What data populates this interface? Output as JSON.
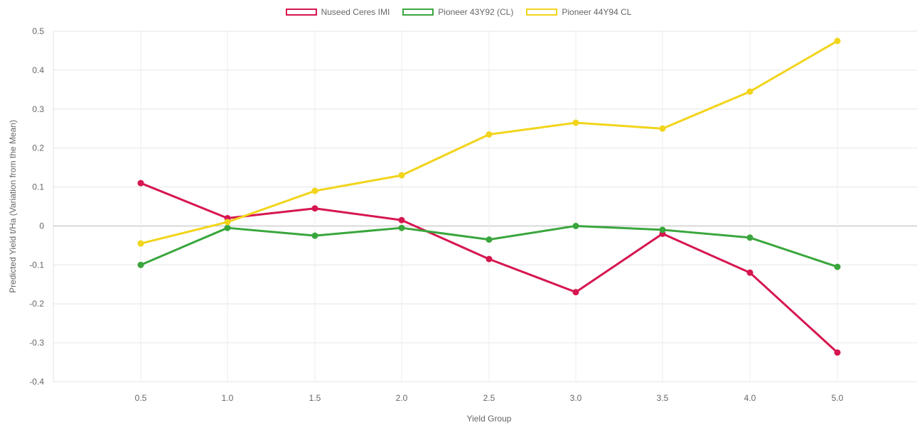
{
  "chart_data": {
    "type": "line",
    "title": "",
    "xlabel": "Yield Group",
    "ylabel": "Predicted Yield t/Ha (Variation from the Mean)",
    "x": [
      0.5,
      1.0,
      1.5,
      2.0,
      2.5,
      3.0,
      3.5,
      4.0,
      5.0
    ],
    "x_labels": [
      "0.5",
      "1.0",
      "1.5",
      "2.0",
      "2.5",
      "3.0",
      "3.5",
      "4.0",
      "5.0"
    ],
    "ylim": [
      -0.4,
      0.5
    ],
    "y_ticks": [
      0.5,
      0.4,
      0.3,
      0.2,
      0.1,
      0,
      -0.1,
      -0.2,
      -0.3,
      -0.4
    ],
    "y_tick_labels": [
      "0.5",
      "0.4",
      "0.3",
      "0.2",
      "0.1",
      "0",
      "-0.1",
      "-0.2",
      "-0.3",
      "-0.4"
    ],
    "grid": true,
    "legend_position": "top-center",
    "series": [
      {
        "name": "Nuseed Ceres IMI",
        "color": "#d6164f",
        "values": [
          0.11,
          0.02,
          0.045,
          0.015,
          -0.085,
          -0.17,
          -0.02,
          -0.12,
          -0.325
        ]
      },
      {
        "name": "Pioneer 43Y92 (CL)",
        "color": "#3aa63d",
        "values": [
          -0.1,
          -0.005,
          -0.025,
          -0.005,
          -0.035,
          0.0,
          -0.01,
          -0.03,
          -0.105
        ]
      },
      {
        "name": "Pioneer 44Y94 CL",
        "color": "#f2d41b",
        "values": [
          -0.045,
          0.01,
          0.09,
          0.13,
          0.235,
          0.265,
          0.25,
          0.345,
          0.475
        ]
      }
    ]
  }
}
